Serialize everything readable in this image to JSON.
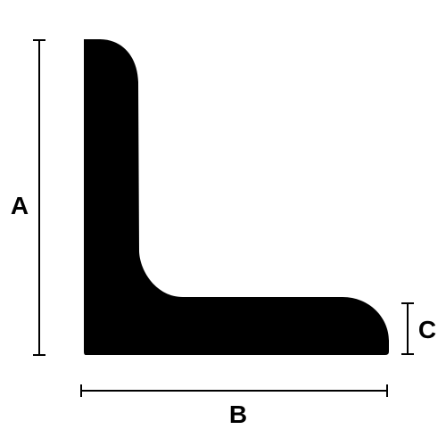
{
  "diagram": {
    "labels": {
      "height": "A",
      "width": "B",
      "thickness": "C"
    }
  },
  "colors": {
    "profile": "#000000",
    "dimension_lines": "#000000",
    "background": "#ffffff"
  }
}
